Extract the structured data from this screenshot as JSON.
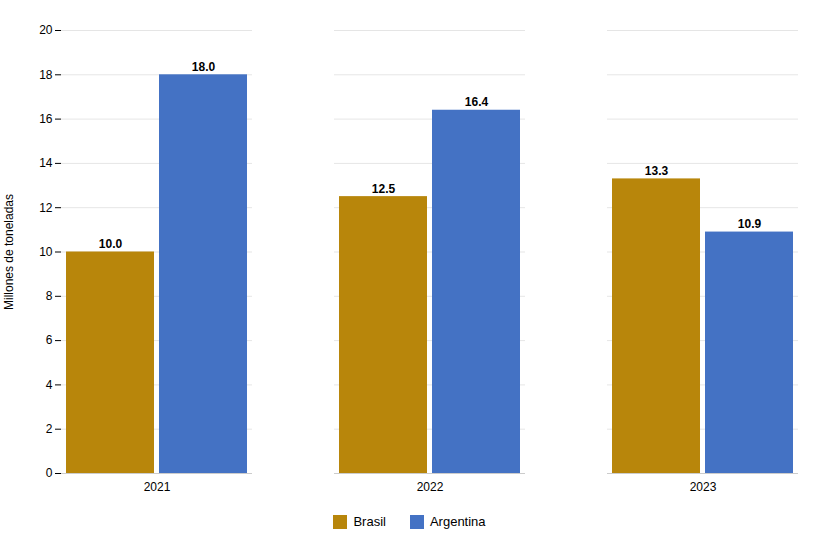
{
  "chart_data": {
    "type": "bar",
    "categories": [
      "2021",
      "2022",
      "2023"
    ],
    "series": [
      {
        "name": "Brasil",
        "color": "#B8860B",
        "values": [
          10.0,
          12.5,
          13.3
        ],
        "value_labels": [
          "10.0",
          "12.5",
          "13.3"
        ]
      },
      {
        "name": "Argentina",
        "color": "#4472C4",
        "values": [
          18.0,
          16.4,
          10.9
        ],
        "value_labels": [
          "18.0",
          "16.4",
          "10.9"
        ]
      }
    ],
    "ylabel": "Millones de toneladas",
    "ylim": [
      0,
      20
    ],
    "yticks": [
      0,
      2,
      4,
      6,
      8,
      10,
      12,
      14,
      16,
      18,
      20
    ],
    "grid": true,
    "legend": "bottom",
    "data_labels": true
  }
}
